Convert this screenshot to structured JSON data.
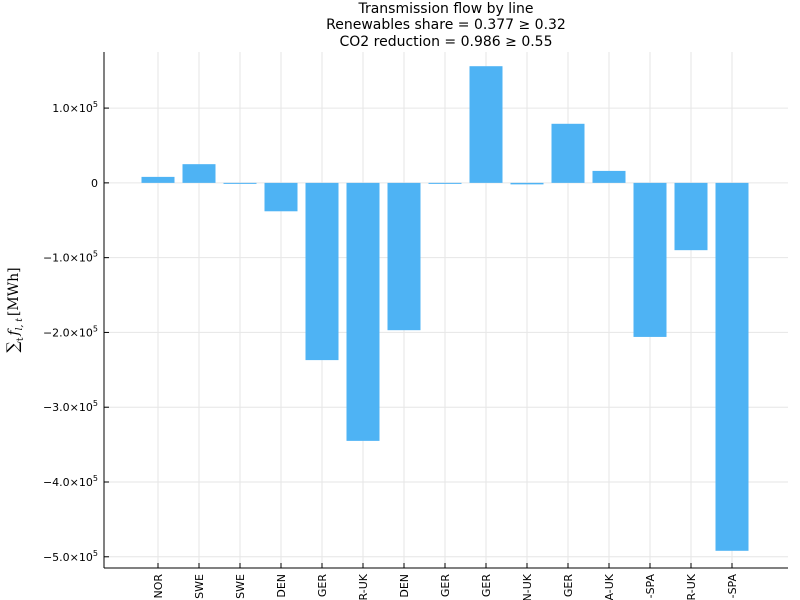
{
  "chart_data": {
    "type": "bar",
    "title_lines": [
      "Transmission flow by line",
      "Renewables share = 0.377 ≥ 0.32",
      "CO2 reduction = 0.986 ≥ 0.55"
    ],
    "ylabel": "∑ f_{l,t} [MWh]",
    "ylabel_parts": {
      "sum": "∑",
      "sum_sub": "t",
      "var": "f",
      "var_sub": "l, t",
      "unit": "[MWh]"
    },
    "categories": [
      "NOR",
      "SWE",
      "SWE",
      "DEN",
      "GER",
      "R-UK",
      "DEN",
      "GER",
      "GER",
      "N-UK",
      "GER",
      "A-UK",
      "-SPA",
      "R-UK",
      "-SPA"
    ],
    "values": [
      8000,
      25000,
      0,
      -38000,
      -237000,
      -345000,
      -197000,
      0,
      156000,
      -2000,
      79000,
      16000,
      -206000,
      -90000,
      -492000
    ],
    "ylim": [
      -515000,
      175000
    ],
    "yticks": [
      {
        "value": 100000,
        "label": "1.0×10",
        "exp": "5"
      },
      {
        "value": 0,
        "label": "0",
        "exp": ""
      },
      {
        "value": -100000,
        "label": "−1.0×10",
        "exp": "5"
      },
      {
        "value": -200000,
        "label": "−2.0×10",
        "exp": "5"
      },
      {
        "value": -300000,
        "label": "−3.0×10",
        "exp": "5"
      },
      {
        "value": -400000,
        "label": "−4.0×10",
        "exp": "5"
      },
      {
        "value": -500000,
        "label": "−5.0×10",
        "exp": "5"
      }
    ],
    "grid": true,
    "legend": "none",
    "bar_color": "#4eb3f4"
  }
}
